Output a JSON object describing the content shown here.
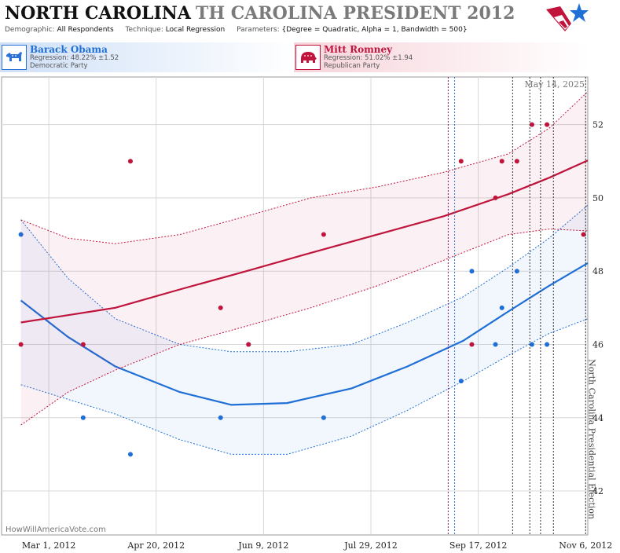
{
  "header": {
    "state": "NORTH CAROLINA",
    "title_rest": "TH CAROLINA PRESIDENT 2012",
    "demographic_label": "Demographic:",
    "demographic_value": "All Respondents",
    "technique_label": "Technique:",
    "technique_value": "Local Regression",
    "parameters_label": "Parameters:",
    "parameters_value": "{Degree = Quadratic, Alpha = 1, Bandwidth = 500}"
  },
  "candidates": {
    "dem": {
      "name": "Barack Obama",
      "regression": "Regression: 48.22% ±1.52",
      "party": "Democratic Party",
      "color": "#1f6fd6"
    },
    "rep": {
      "name": "Mitt Romney",
      "regression": "Regression: 51.02% ±1.94",
      "party": "Republican Party",
      "color": "#c0143c"
    }
  },
  "chart_data": {
    "type": "scatter",
    "x_tick_labels": [
      "Mar 1, 2012",
      "Apr 20, 2012",
      "Jun 9, 2012",
      "Jul 29, 2012",
      "Sep 17, 2012",
      "Nov 6, 2012"
    ],
    "x_tick_dates": [
      "2012-03-01",
      "2012-04-20",
      "2012-06-09",
      "2012-07-29",
      "2012-09-17",
      "2012-11-06"
    ],
    "xlim": [
      "2012-02-08",
      "2012-11-07"
    ],
    "y_ticks": [
      42,
      44,
      46,
      48,
      50,
      52
    ],
    "ylim": [
      40.8,
      53.3
    ],
    "date_stamp": "May 14, 2025",
    "event_label": "North Carolina Presidential Election",
    "event_date": "2012-11-06",
    "credit": "HowWillAmericaVote.com",
    "vertical_markers": [
      {
        "date": "2012-09-03",
        "color": "#7a1f7a"
      },
      {
        "date": "2012-09-06",
        "color": "#2a72d8"
      },
      {
        "date": "2012-10-03",
        "color": "#333333"
      },
      {
        "date": "2012-10-11",
        "color": "#333333"
      },
      {
        "date": "2012-10-16",
        "color": "#333333"
      },
      {
        "date": "2012-10-22",
        "color": "#333333"
      }
    ],
    "series": [
      {
        "name": "Barack Obama",
        "color": "#1f6fd6",
        "points": [
          [
            "2012-02-17",
            49
          ],
          [
            "2012-03-17",
            44
          ],
          [
            "2012-04-08",
            43
          ],
          [
            "2012-05-20",
            44
          ],
          [
            "2012-06-02",
            46
          ],
          [
            "2012-07-07",
            44
          ],
          [
            "2012-09-09",
            45
          ],
          [
            "2012-09-14",
            48
          ],
          [
            "2012-09-25",
            46
          ],
          [
            "2012-09-28",
            47
          ],
          [
            "2012-10-05",
            48
          ],
          [
            "2012-10-12",
            46
          ],
          [
            "2012-10-19",
            46
          ]
        ],
        "fit": [
          [
            "2012-02-17",
            47.2
          ],
          [
            "2012-03-10",
            46.2
          ],
          [
            "2012-04-01",
            45.4
          ],
          [
            "2012-05-01",
            44.7
          ],
          [
            "2012-05-25",
            44.35
          ],
          [
            "2012-06-20",
            44.4
          ],
          [
            "2012-07-20",
            44.8
          ],
          [
            "2012-08-15",
            45.4
          ],
          [
            "2012-09-10",
            46.1
          ],
          [
            "2012-10-01",
            46.9
          ],
          [
            "2012-10-20",
            47.6
          ],
          [
            "2012-11-07",
            48.22
          ]
        ],
        "band_upper": [
          [
            "2012-02-17",
            49.4
          ],
          [
            "2012-03-10",
            47.8
          ],
          [
            "2012-04-01",
            46.7
          ],
          [
            "2012-05-01",
            46.0
          ],
          [
            "2012-05-25",
            45.8
          ],
          [
            "2012-06-20",
            45.8
          ],
          [
            "2012-07-20",
            46.0
          ],
          [
            "2012-08-15",
            46.6
          ],
          [
            "2012-09-10",
            47.3
          ],
          [
            "2012-10-01",
            48.1
          ],
          [
            "2012-10-20",
            48.9
          ],
          [
            "2012-11-07",
            49.8
          ]
        ],
        "band_lower": [
          [
            "2012-02-17",
            44.9
          ],
          [
            "2012-03-10",
            44.5
          ],
          [
            "2012-04-01",
            44.1
          ],
          [
            "2012-05-01",
            43.4
          ],
          [
            "2012-05-25",
            43.0
          ],
          [
            "2012-06-20",
            43.0
          ],
          [
            "2012-07-20",
            43.5
          ],
          [
            "2012-08-15",
            44.2
          ],
          [
            "2012-09-10",
            45.0
          ],
          [
            "2012-10-01",
            45.7
          ],
          [
            "2012-10-20",
            46.3
          ],
          [
            "2012-11-07",
            46.7
          ]
        ]
      },
      {
        "name": "Mitt Romney",
        "color": "#c0143c",
        "points": [
          [
            "2012-02-17",
            46
          ],
          [
            "2012-03-17",
            46
          ],
          [
            "2012-04-08",
            51
          ],
          [
            "2012-05-20",
            47
          ],
          [
            "2012-06-02",
            46
          ],
          [
            "2012-07-07",
            49
          ],
          [
            "2012-09-09",
            51
          ],
          [
            "2012-09-14",
            46
          ],
          [
            "2012-09-25",
            50
          ],
          [
            "2012-09-28",
            51
          ],
          [
            "2012-10-05",
            51
          ],
          [
            "2012-10-12",
            52
          ],
          [
            "2012-10-19",
            52
          ],
          [
            "2012-11-05",
            49
          ]
        ],
        "fit": [
          [
            "2012-02-17",
            46.6
          ],
          [
            "2012-03-10",
            46.8
          ],
          [
            "2012-04-01",
            47.0
          ],
          [
            "2012-05-01",
            47.5
          ],
          [
            "2012-06-01",
            48.0
          ],
          [
            "2012-07-01",
            48.5
          ],
          [
            "2012-08-01",
            49.0
          ],
          [
            "2012-09-01",
            49.5
          ],
          [
            "2012-10-01",
            50.1
          ],
          [
            "2012-10-20",
            50.55
          ],
          [
            "2012-11-07",
            51.02
          ]
        ],
        "band_upper": [
          [
            "2012-02-17",
            49.4
          ],
          [
            "2012-03-10",
            48.9
          ],
          [
            "2012-04-01",
            48.75
          ],
          [
            "2012-05-01",
            49.0
          ],
          [
            "2012-06-01",
            49.5
          ],
          [
            "2012-07-01",
            50.0
          ],
          [
            "2012-08-01",
            50.3
          ],
          [
            "2012-09-01",
            50.7
          ],
          [
            "2012-10-01",
            51.2
          ],
          [
            "2012-10-20",
            51.9
          ],
          [
            "2012-11-07",
            52.9
          ]
        ],
        "band_lower": [
          [
            "2012-02-17",
            43.8
          ],
          [
            "2012-03-10",
            44.7
          ],
          [
            "2012-04-01",
            45.3
          ],
          [
            "2012-05-01",
            46.0
          ],
          [
            "2012-06-01",
            46.5
          ],
          [
            "2012-07-01",
            47.0
          ],
          [
            "2012-08-01",
            47.6
          ],
          [
            "2012-09-01",
            48.3
          ],
          [
            "2012-10-01",
            49.0
          ],
          [
            "2012-10-20",
            49.15
          ],
          [
            "2012-11-07",
            49.1
          ]
        ]
      }
    ]
  }
}
